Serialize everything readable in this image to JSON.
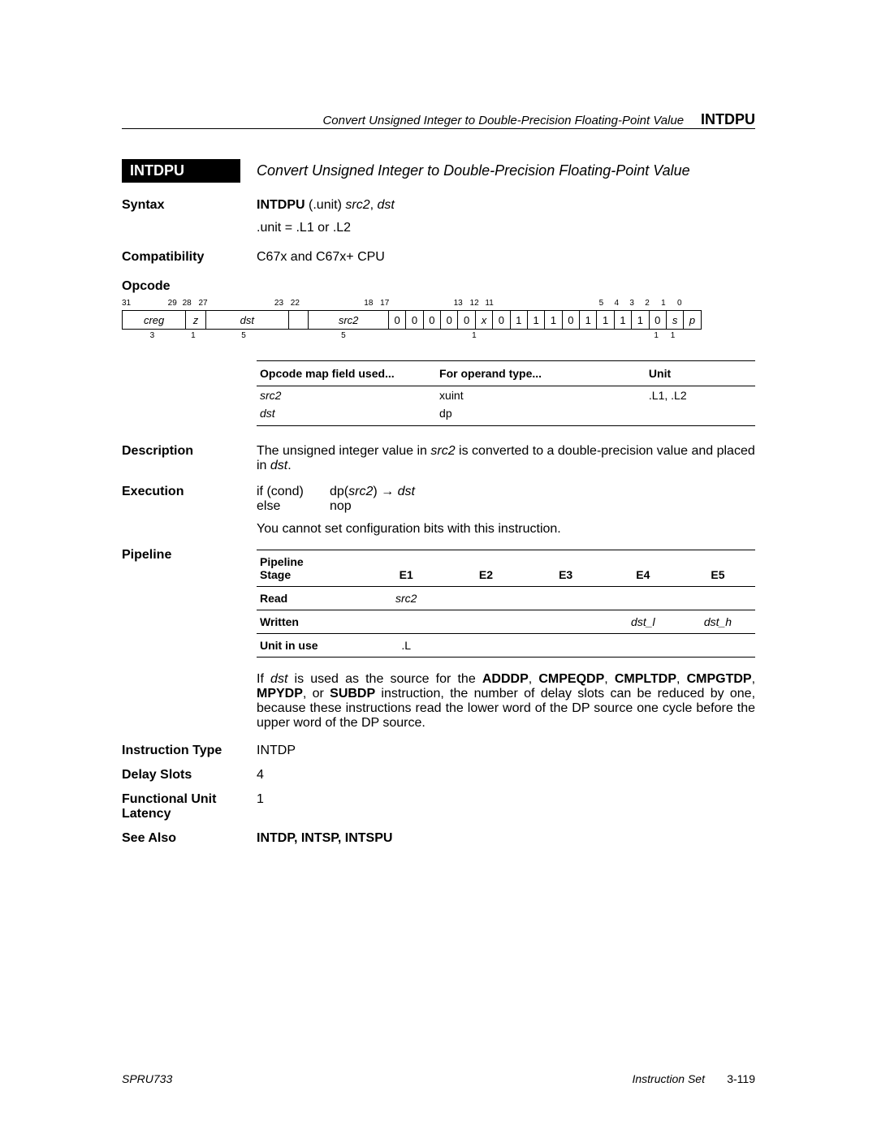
{
  "header": {
    "italic": "Convert Unsigned Integer to Double-Precision Floating-Point Value",
    "bold": "INTDPU"
  },
  "title": {
    "badge": "INTDPU",
    "desc": "Convert Unsigned Integer to Double-Precision Floating-Point Value"
  },
  "syntax": {
    "label": "Syntax",
    "instr": "INTDPU",
    "unit_paren": "(.unit)",
    "args": "src2",
    "args2": "dst",
    "comma": ", ",
    "unit_line": ".unit = .L1 or .L2"
  },
  "compatibility": {
    "label": "Compatibility",
    "value": "C67x and C67x+ CPU"
  },
  "opcode": {
    "label": "Opcode",
    "bit_top": [
      "31",
      "29",
      "28",
      "27",
      "23",
      "22",
      "18",
      "17",
      "13",
      "12",
      "11",
      "5",
      "4",
      "3",
      "2",
      "1",
      "0"
    ],
    "bit_top_pos": [
      0,
      57,
      75,
      95,
      189,
      209,
      300,
      320,
      411,
      431,
      450,
      591,
      610,
      629,
      648,
      668,
      688
    ],
    "fields": [
      "creg",
      "z",
      "dst",
      "",
      "src2",
      "0",
      "0",
      "0",
      "0",
      "0",
      "x",
      "0",
      "1",
      "1",
      "1",
      "0",
      "1",
      "1",
      "1",
      "1",
      "0",
      "s",
      "p"
    ],
    "field_widths": [
      72,
      22,
      94,
      22,
      91,
      19,
      19,
      19,
      19,
      19,
      19,
      19,
      19,
      19,
      19,
      19,
      19,
      19,
      19,
      19,
      19,
      19,
      19
    ],
    "field_italic": [
      true,
      true,
      true,
      false,
      true,
      false,
      false,
      false,
      false,
      false,
      true,
      false,
      false,
      false,
      false,
      false,
      false,
      false,
      false,
      false,
      false,
      true,
      true
    ],
    "bit_bottom": [
      "3",
      "1",
      "5",
      "",
      "5",
      "",
      "",
      "",
      "",
      "",
      "1",
      "",
      "",
      "",
      "",
      "",
      "",
      "",
      "",
      "",
      "",
      "1",
      "1"
    ]
  },
  "opmap": {
    "col1": "Opcode map field used...",
    "col2": "For operand type...",
    "col3": "Unit",
    "r1c1": "src2",
    "r1c2": "xuint",
    "r1c3": ".L1, .L2",
    "r2c1": "dst",
    "r2c2": "dp",
    "r2c3": ""
  },
  "description": {
    "label": "Description",
    "text_pre": "The unsigned integer value in ",
    "src2": "src2",
    "text_mid": " is converted to a double-precision value and placed in ",
    "dst": "dst",
    "text_post": "."
  },
  "execution": {
    "label": "Execution",
    "if": "if (cond)",
    "then_pre": "dp(",
    "then_src": "src2",
    "then_mid": ") → ",
    "then_dst": "dst",
    "else": "else",
    "nop": "nop",
    "note": "You cannot set configuration bits with this instruction."
  },
  "pipeline": {
    "label": "Pipeline",
    "h0a": "Pipeline",
    "h0b": "Stage",
    "h1": "E1",
    "h2": "E2",
    "h3": "E3",
    "h4": "E4",
    "h5": "E5",
    "r1": "Read",
    "r1v": "src2",
    "r2": "Written",
    "r2v4": "dst_l",
    "r2v5": "dst_h",
    "r3": "Unit in use",
    "r3v": ".L",
    "note_pre": "If ",
    "note_dst": "dst",
    "note_mid1": " is used as the source for the ",
    "note_b1": "ADDDP",
    "note_b2": "CMPEQDP",
    "note_b3": "CMPLTDP",
    "note_b4": "CMPGTDP",
    "note_b5": "MPYDP",
    "note_b6": "SUBDP",
    "note_rest": " instruction, the number of delay slots can be reduced by one, because these instructions read the lower word of the DP source one cycle before the upper word of the DP source.",
    "sep": ", ",
    "or": ", or "
  },
  "instruction_type": {
    "label": "Instruction Type",
    "value": "INTDP"
  },
  "delay_slots": {
    "label": "Delay Slots",
    "value": "4"
  },
  "fu_latency": {
    "label1": "Functional Unit",
    "label2": "Latency",
    "value": "1"
  },
  "see_also": {
    "label": "See Also",
    "value": "INTDP, INTSP, INTSPU"
  },
  "footer": {
    "left": "SPRU733",
    "right_italic": "Instruction Set",
    "right_page": "3-119"
  }
}
